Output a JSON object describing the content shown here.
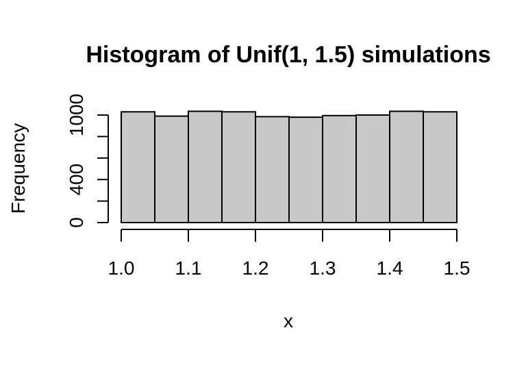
{
  "chart_data": {
    "type": "histogram",
    "title": "Histogram of Unif(1, 1.5) simulations",
    "xlabel": "x",
    "ylabel": "Frequency",
    "bin_edges": [
      1.0,
      1.05,
      1.1,
      1.15,
      1.2,
      1.25,
      1.3,
      1.35,
      1.4,
      1.45,
      1.5
    ],
    "values": [
      1030,
      990,
      1035,
      1030,
      985,
      980,
      995,
      1000,
      1035,
      1030
    ],
    "x_ticks": [
      1.0,
      1.1,
      1.2,
      1.3,
      1.4,
      1.5
    ],
    "x_tick_labels": [
      "1.0",
      "1.1",
      "1.2",
      "1.3",
      "1.4",
      "1.5"
    ],
    "y_ticks": [
      0,
      200,
      400,
      600,
      800,
      1000
    ],
    "y_tick_labels": [
      "0",
      "400",
      "1000"
    ],
    "y_tick_labeled_values": [
      0,
      400,
      1000
    ],
    "xlim": [
      1.0,
      1.5
    ],
    "ylim": [
      0,
      1000
    ],
    "bar_fill": "#c8c8c8",
    "bar_stroke": "#000000",
    "grid": false
  }
}
